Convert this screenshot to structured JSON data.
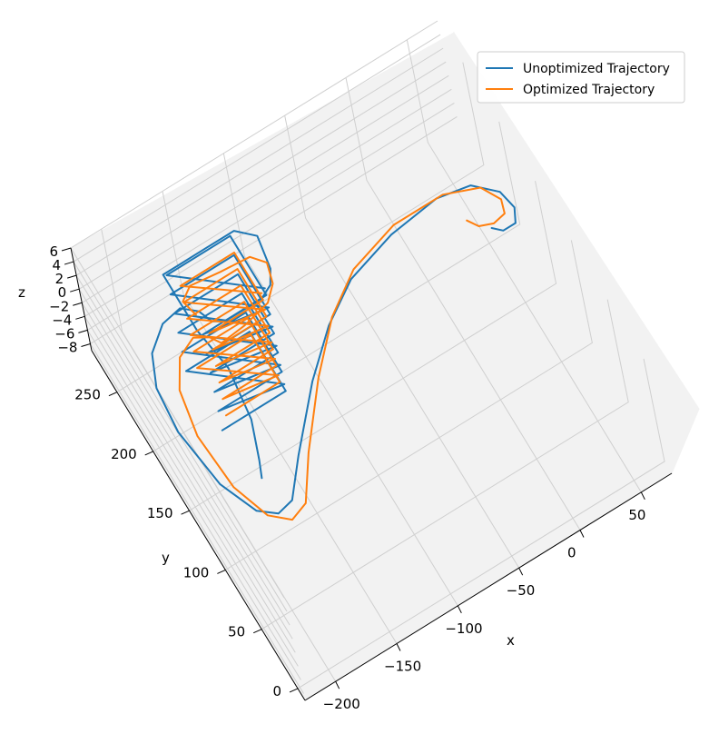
{
  "chart_data": {
    "type": "line",
    "projection": "3d",
    "title": "",
    "xlabel": "x",
    "ylabel": "y",
    "zlabel": "z",
    "xlim": [
      -225,
      75
    ],
    "ylim": [
      -10,
      285
    ],
    "zlim": [
      -9,
      6
    ],
    "x_ticks": [
      -200,
      -150,
      -100,
      -50,
      0,
      50
    ],
    "x_tick_labels": [
      "−200",
      "−150",
      "−100",
      "−50",
      "0",
      "50"
    ],
    "y_ticks": [
      0,
      50,
      100,
      150,
      200,
      250
    ],
    "y_tick_labels": [
      "0",
      "50",
      "100",
      "150",
      "200",
      "250"
    ],
    "z_ticks": [
      6,
      4,
      2,
      0,
      -2,
      -4,
      -6,
      -8
    ],
    "z_tick_labels": [
      "6",
      "4",
      "2",
      "0",
      "−2",
      "−4",
      "−6",
      "−8"
    ],
    "legend": {
      "placement": "top-right",
      "entries": [
        {
          "label": "Unoptimized Trajectory",
          "color": "#1f77b4"
        },
        {
          "label": "Optimized Trajectory",
          "color": "#ff7f0e"
        }
      ]
    },
    "series": [
      {
        "name": "Unoptimized Trajectory",
        "color": "#1f77b4",
        "path": [
          [
            42,
            166,
            0
          ],
          [
            48,
            160,
            0
          ],
          [
            58,
            160,
            0
          ],
          [
            63,
            170,
            0
          ],
          [
            60,
            185,
            0
          ],
          [
            45,
            200,
            0
          ],
          [
            20,
            205,
            0
          ],
          [
            -20,
            200,
            0
          ],
          [
            -60,
            188,
            0
          ],
          [
            -90,
            168,
            0
          ],
          [
            -120,
            140,
            0
          ],
          [
            -155,
            100,
            0
          ],
          [
            -175,
            75,
            0
          ],
          [
            -188,
            72,
            0
          ],
          [
            -200,
            82,
            0
          ],
          [
            -212,
            112,
            0
          ],
          [
            -218,
            160,
            0
          ],
          [
            -215,
            195,
            0
          ],
          [
            -205,
            218,
            0
          ],
          [
            -188,
            232,
            0
          ],
          [
            -172,
            235,
            0
          ],
          [
            -162,
            226,
            0
          ],
          [
            -158,
            215,
            0
          ],
          [
            -150,
            210,
            0
          ],
          [
            -120,
            210,
            0
          ],
          [
            -110,
            215,
            0
          ],
          [
            -104,
            225,
            0
          ],
          [
            -100,
            250,
            0
          ],
          [
            -112,
            262,
            0
          ],
          [
            -135,
            262,
            0
          ],
          [
            -160,
            262,
            0
          ],
          [
            -170,
            262,
            0
          ],
          [
            -170,
            215,
            0
          ],
          [
            -165,
            180,
            0
          ],
          [
            -170,
            140,
            0
          ],
          [
            -180,
            112,
            0
          ],
          [
            -185,
            100,
            0
          ]
        ],
        "coil": {
          "x_range": [
            -178,
            -126
          ],
          "y_range": [
            182,
            232
          ],
          "z_range": [
            -8,
            6
          ],
          "loops": 6
        }
      },
      {
        "name": "Optimized Trajectory",
        "color": "#ff7f0e",
        "path": [
          [
            30,
            180,
            0
          ],
          [
            35,
            172,
            0
          ],
          [
            45,
            168,
            0
          ],
          [
            55,
            170,
            0
          ],
          [
            58,
            180,
            0
          ],
          [
            50,
            195,
            0
          ],
          [
            25,
            205,
            0
          ],
          [
            -15,
            205,
            0
          ],
          [
            -55,
            193,
            0
          ],
          [
            -85,
            172,
            0
          ],
          [
            -115,
            140,
            0
          ],
          [
            -148,
            98,
            0
          ],
          [
            -168,
            68,
            0
          ],
          [
            -182,
            63,
            0
          ],
          [
            -195,
            75,
            0
          ],
          [
            -205,
            105,
            0
          ],
          [
            -208,
            150,
            0
          ],
          [
            -202,
            185,
            0
          ],
          [
            -190,
            205,
            0
          ],
          [
            -175,
            212,
            0
          ],
          [
            -165,
            206,
            0
          ],
          [
            -160,
            198,
            0
          ],
          [
            -140,
            200,
            0
          ],
          [
            -118,
            205,
            0
          ],
          [
            -108,
            215,
            0
          ],
          [
            -104,
            230,
            0
          ],
          [
            -112,
            240,
            0
          ],
          [
            -135,
            242,
            0
          ],
          [
            -158,
            245,
            0
          ],
          [
            -168,
            238,
            0
          ],
          [
            -165,
            225,
            0
          ]
        ],
        "coil": {
          "x_range": [
            -172,
            -128
          ],
          "y_range": [
            185,
            225
          ],
          "z_range": [
            -7,
            5
          ],
          "loops": 6
        }
      }
    ]
  }
}
